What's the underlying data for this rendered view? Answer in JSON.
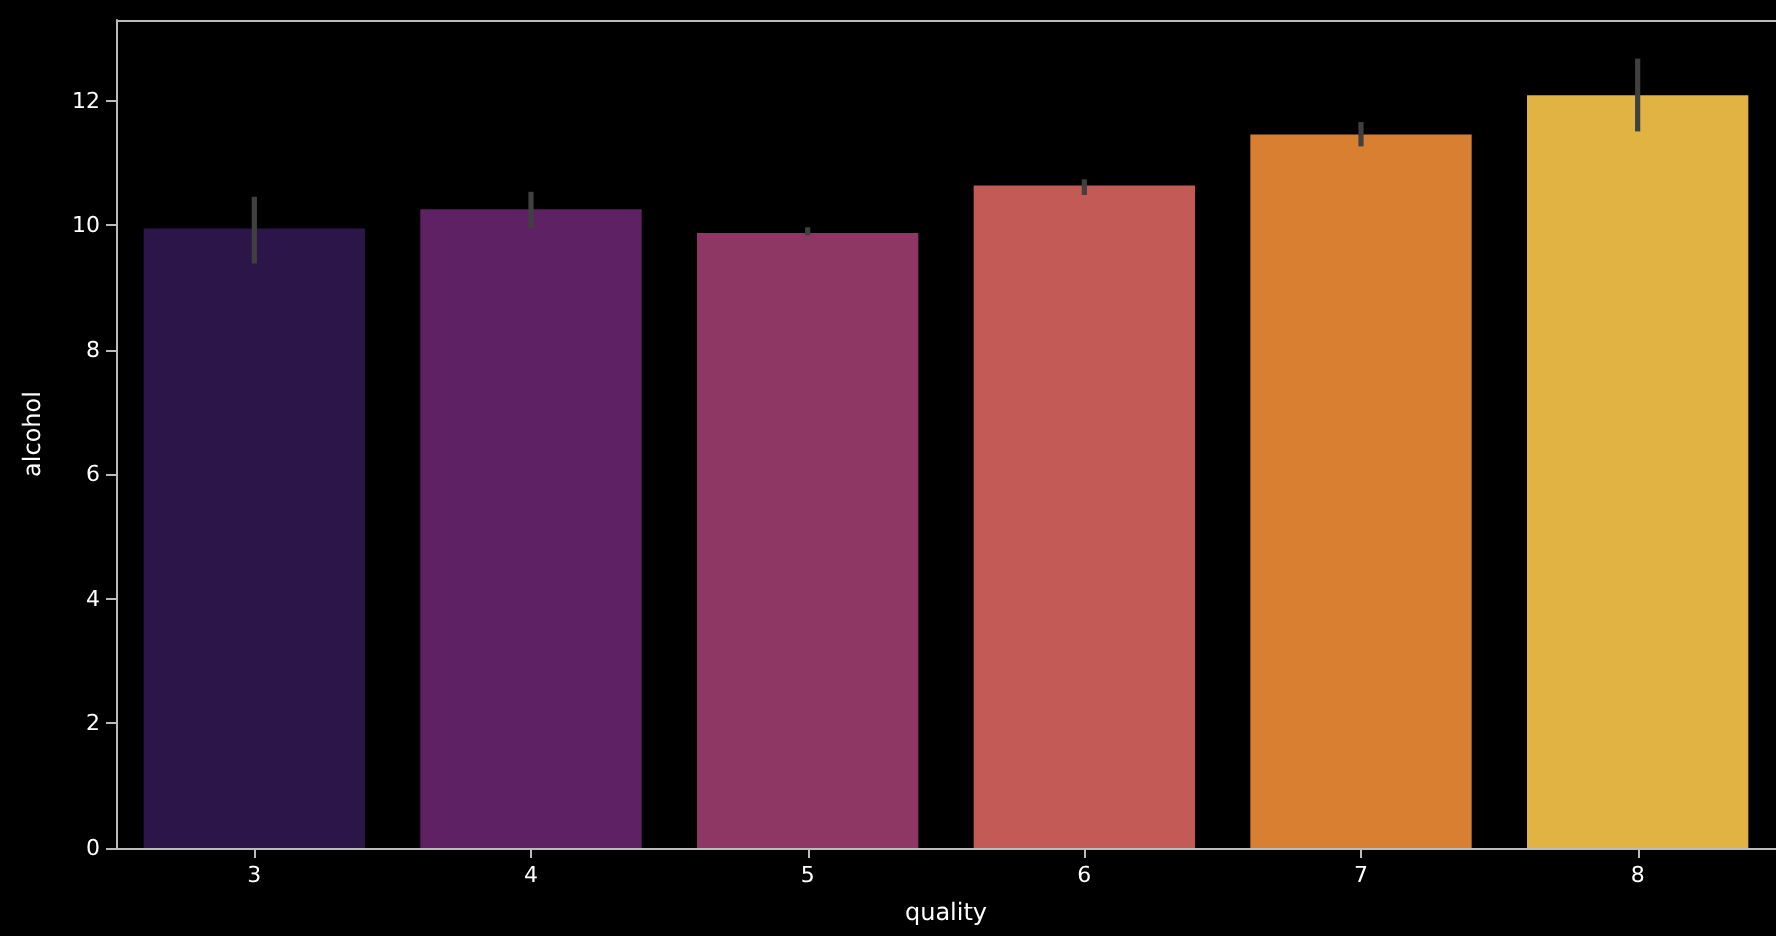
{
  "chart_data": {
    "type": "bar",
    "xlabel": "quality",
    "ylabel": "alcohol",
    "categories": [
      "3",
      "4",
      "5",
      "6",
      "7",
      "8"
    ],
    "values": [
      9.95,
      10.26,
      9.88,
      10.64,
      11.46,
      12.09
    ],
    "errors": [
      [
        9.39,
        10.46
      ],
      [
        9.96,
        10.54
      ],
      [
        9.84,
        9.97
      ],
      [
        10.49,
        10.74
      ],
      [
        11.27,
        11.66
      ],
      [
        11.51,
        12.68
      ]
    ],
    "colors": [
      "#2c1548",
      "#5e2163",
      "#8f3764",
      "#c45a56",
      "#d97f32",
      "#e1b342"
    ],
    "ylim": [
      0,
      13.3
    ],
    "yticks": [
      0,
      2,
      4,
      6,
      8,
      10,
      12
    ],
    "grid": false
  }
}
